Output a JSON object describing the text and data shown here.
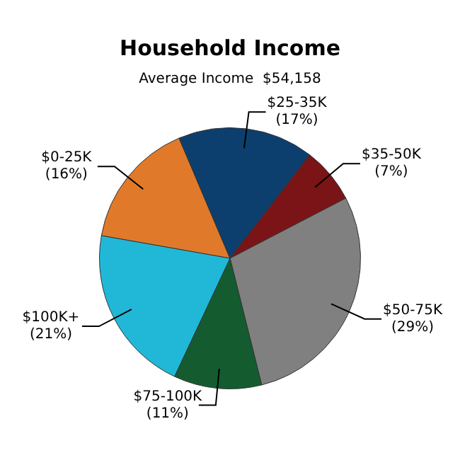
{
  "chart_data": {
    "type": "pie",
    "title": "Household Income",
    "subtitle": "Average Income  $54,158",
    "categories": [
      "$0-25K",
      "$25-35K",
      "$35-50K",
      "$50-75K",
      "$75-100K",
      "$100K+"
    ],
    "values": [
      16,
      17,
      7,
      29,
      11,
      21
    ],
    "value_labels": [
      "(16%)",
      "(17%)",
      "(7%)",
      "(29%)",
      "(11%)",
      "(21%)"
    ],
    "colors": [
      "#e07a2a",
      "#0d3f6e",
      "#7a1416",
      "#808080",
      "#145c30",
      "#21b8d8"
    ],
    "legend": false
  }
}
